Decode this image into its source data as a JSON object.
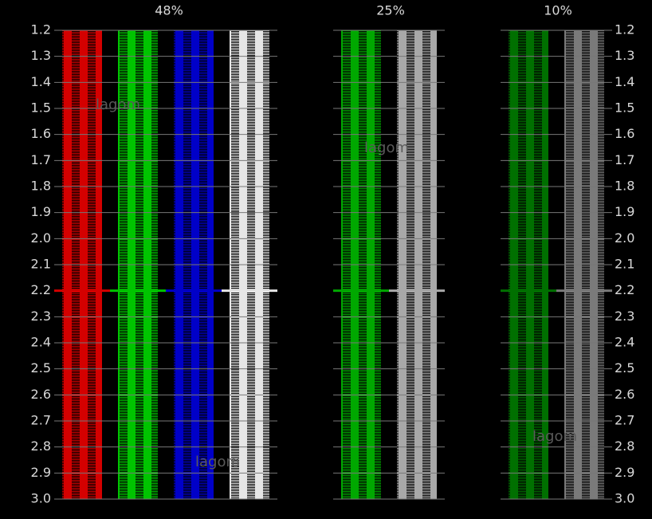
{
  "headers": [
    "48%",
    "25%",
    "10%"
  ],
  "scale": [
    "1.2",
    "1.3",
    "1.4",
    "1.5",
    "1.6",
    "1.7",
    "1.8",
    "1.9",
    "2.0",
    "2.1",
    "2.2",
    "2.3",
    "2.4",
    "2.5",
    "2.6",
    "2.7",
    "2.8",
    "2.9",
    "3.0"
  ],
  "watermarks": [
    "lagom",
    "lagom",
    "lagom",
    "lagom"
  ]
}
